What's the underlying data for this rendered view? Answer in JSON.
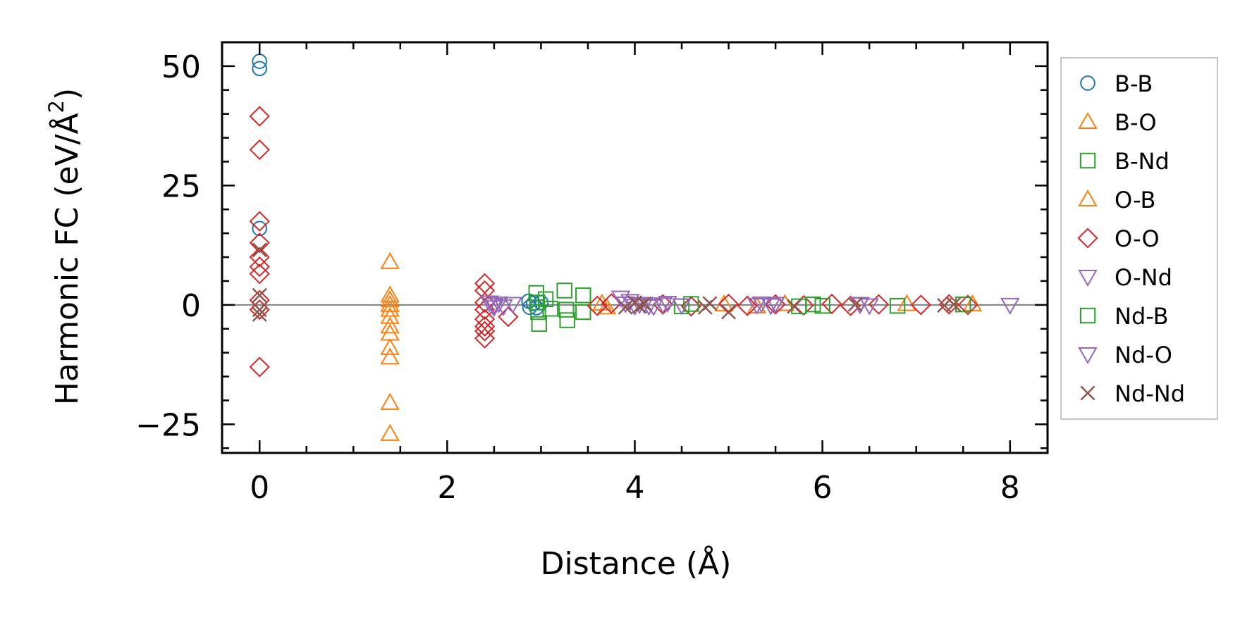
{
  "chart_data": {
    "type": "scatter",
    "title": "",
    "xlabel": "Distance (Å)",
    "ylabel_main": "Harmonic FC (eV/Å",
    "ylabel_sup": "2",
    "ylabel_close": ")",
    "xlim": [
      -0.4,
      8.4
    ],
    "ylim": [
      -31,
      55
    ],
    "x_ticks": [
      0,
      2,
      4,
      6,
      8
    ],
    "x_tick_labels": [
      "0",
      "2",
      "4",
      "6",
      "8"
    ],
    "y_ticks": [
      -25,
      0,
      25,
      50
    ],
    "y_tick_labels": [
      "−25",
      "0",
      "25",
      "50"
    ],
    "x_minor_step": 0.5,
    "y_minor_step": 5,
    "zero_line": true,
    "grid": false,
    "legend_position": "right",
    "series": [
      {
        "name": "B-B",
        "marker": "circle",
        "color": "#1f77b4",
        "points": [
          [
            0,
            51
          ],
          [
            0,
            49.5
          ],
          [
            0,
            16
          ],
          [
            2.87,
            0.8
          ],
          [
            2.88,
            -0.5
          ],
          [
            2.92,
            0.3
          ],
          [
            2.95,
            -0.6
          ],
          [
            3.0,
            0.5
          ]
        ]
      },
      {
        "name": "B-O",
        "marker": "triangle-up",
        "color": "#ff7f0e",
        "points": [
          [
            1.39,
            9
          ],
          [
            1.39,
            2
          ],
          [
            1.39,
            1
          ],
          [
            1.39,
            0
          ],
          [
            1.39,
            -1
          ],
          [
            1.39,
            -2.5
          ],
          [
            1.39,
            -4.5
          ],
          [
            1.39,
            -6
          ],
          [
            1.39,
            -9
          ],
          [
            1.39,
            -11
          ],
          [
            1.39,
            -20.5
          ],
          [
            1.39,
            -27
          ]
        ]
      },
      {
        "name": "B-Nd",
        "marker": "square",
        "color": "#2ca02c",
        "points": [
          [
            2.95,
            2.5
          ],
          [
            2.96,
            0.5
          ],
          [
            2.97,
            -1.5
          ],
          [
            2.98,
            -4
          ],
          [
            3.05,
            1.2
          ],
          [
            3.1,
            -0.8
          ],
          [
            3.25,
            3
          ],
          [
            3.27,
            -1
          ],
          [
            3.28,
            -3.2
          ],
          [
            3.45,
            2
          ],
          [
            3.45,
            -1.5
          ]
        ]
      },
      {
        "name": "O-B",
        "marker": "triangle-up",
        "color": "#ff7f0e",
        "points": [
          [
            3.65,
            0.3
          ],
          [
            3.7,
            -0.5
          ],
          [
            4.95,
            0.1
          ],
          [
            5.3,
            -0.3
          ],
          [
            5.6,
            0.2
          ],
          [
            6.9,
            0.2
          ],
          [
            7.6,
            0.1
          ]
        ]
      },
      {
        "name": "O-O",
        "marker": "diamond",
        "color": "#d62728",
        "points": [
          [
            0,
            39.5
          ],
          [
            0,
            32.5
          ],
          [
            0,
            17.5
          ],
          [
            0,
            13
          ],
          [
            0,
            10
          ],
          [
            0,
            8
          ],
          [
            0,
            6.5
          ],
          [
            0,
            1
          ],
          [
            0,
            -1
          ],
          [
            0,
            -13
          ],
          [
            2.4,
            4.5
          ],
          [
            2.4,
            3
          ],
          [
            2.4,
            0.5
          ],
          [
            2.4,
            -1
          ],
          [
            2.4,
            -3
          ],
          [
            2.4,
            -4.5
          ],
          [
            2.4,
            -5.5
          ],
          [
            2.4,
            -7
          ],
          [
            2.65,
            -2.5
          ],
          [
            3.6,
            -0.2
          ],
          [
            3.75,
            0.3
          ],
          [
            4.3,
            0.1
          ],
          [
            4.6,
            -0.3
          ],
          [
            5.0,
            0.2
          ],
          [
            5.2,
            -0.2
          ],
          [
            5.5,
            0.1
          ],
          [
            5.8,
            -0.1
          ],
          [
            6.1,
            0.2
          ],
          [
            6.3,
            -0.2
          ],
          [
            6.6,
            0.1
          ],
          [
            7.05,
            0.0
          ],
          [
            7.35,
            0.1
          ],
          [
            7.55,
            0.0
          ]
        ]
      },
      {
        "name": "O-Nd",
        "marker": "triangle-down",
        "color": "#9467bd",
        "points": [
          [
            2.45,
            0.5
          ],
          [
            2.5,
            -0.5
          ],
          [
            2.55,
            0.3
          ],
          [
            2.6,
            -0.3
          ],
          [
            2.7,
            0.2
          ],
          [
            3.9,
            0.3
          ],
          [
            4.0,
            -0.2
          ],
          [
            4.1,
            0.2
          ],
          [
            4.2,
            -0.3
          ],
          [
            4.3,
            0.1
          ],
          [
            5.3,
            0.0
          ],
          [
            5.5,
            0.2
          ],
          [
            6.4,
            0.1
          ],
          [
            6.5,
            -0.1
          ]
        ]
      },
      {
        "name": "Nd-B",
        "marker": "square",
        "color": "#2ca02c",
        "points": [
          [
            4.5,
            -0.3
          ],
          [
            4.6,
            0.2
          ],
          [
            5.75,
            -0.3
          ],
          [
            5.9,
            0.1
          ],
          [
            6.0,
            -0.2
          ],
          [
            6.8,
            -0.2
          ],
          [
            7.5,
            0.1
          ]
        ]
      },
      {
        "name": "Nd-O",
        "marker": "triangle-down",
        "color": "#9467bd",
        "points": [
          [
            2.5,
            0.0
          ],
          [
            3.85,
            1.5
          ],
          [
            3.95,
            0.8
          ],
          [
            4.05,
            0.1
          ],
          [
            4.15,
            -0.2
          ],
          [
            4.35,
            0.4
          ],
          [
            4.5,
            -0.1
          ],
          [
            5.35,
            0.3
          ],
          [
            5.45,
            -0.1
          ],
          [
            6.4,
            0.2
          ],
          [
            8.0,
            0.0
          ]
        ]
      },
      {
        "name": "Nd-Nd",
        "marker": "x",
        "color": "#8c564b",
        "points": [
          [
            0,
            11.5
          ],
          [
            0,
            2
          ],
          [
            0,
            -1
          ],
          [
            0,
            -2
          ],
          [
            3.9,
            -0.5
          ],
          [
            4.0,
            0.5
          ],
          [
            4.05,
            -0.3
          ],
          [
            4.1,
            0.2
          ],
          [
            4.75,
            -0.5
          ],
          [
            4.8,
            0.3
          ],
          [
            5.0,
            -1.5
          ],
          [
            5.7,
            -0.3
          ],
          [
            6.35,
            0.1
          ],
          [
            7.3,
            -0.1
          ],
          [
            7.4,
            0.1
          ]
        ]
      }
    ]
  }
}
